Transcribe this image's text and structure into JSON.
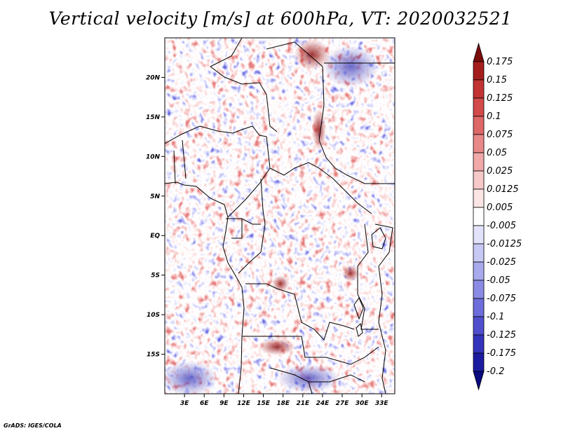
{
  "chart_data": {
    "type": "heatmap",
    "title": "Vertical velocity [m/s] at 600hPa, VT: 2020032521",
    "variable": "Vertical velocity",
    "units": "m/s",
    "level": "600hPa",
    "valid_time": "2020032521",
    "xlim": [
      0,
      35
    ],
    "ylim": [
      -20,
      25
    ],
    "x_ticks": [
      "3E",
      "6E",
      "9E",
      "12E",
      "15E",
      "18E",
      "21E",
      "24E",
      "27E",
      "30E",
      "33E"
    ],
    "x_tick_values": [
      3,
      6,
      9,
      12,
      15,
      18,
      21,
      24,
      27,
      30,
      33
    ],
    "y_ticks": [
      "20N",
      "15N",
      "10N",
      "5N",
      "EQ",
      "5S",
      "10S",
      "15S"
    ],
    "y_tick_values": [
      20,
      15,
      10,
      5,
      0,
      -5,
      -10,
      -15
    ],
    "colorbar": {
      "labels": [
        "0.175",
        "0.15",
        "0.125",
        "0.1",
        "0.075",
        "0.05",
        "0.025",
        "0.0125",
        "0.005",
        "-0.005",
        "-0.0125",
        "-0.025",
        "-0.05",
        "-0.075",
        "-0.1",
        "-0.125",
        "-0.175",
        "-0.2"
      ],
      "colors": [
        "#7b0d0d",
        "#a51e1e",
        "#c23333",
        "#d24a4a",
        "#de6767",
        "#e88888",
        "#f0a8a8",
        "#f6c8c8",
        "#fbe4e4",
        "#ffffff",
        "#e2e2fb",
        "#c8c8f4",
        "#a9a9ee",
        "#8b8be6",
        "#6d6ddc",
        "#5050cf",
        "#3333bb",
        "#1c1ca0",
        "#0a0a80"
      ]
    }
  },
  "credit": "GrADS: IGES/COLA"
}
